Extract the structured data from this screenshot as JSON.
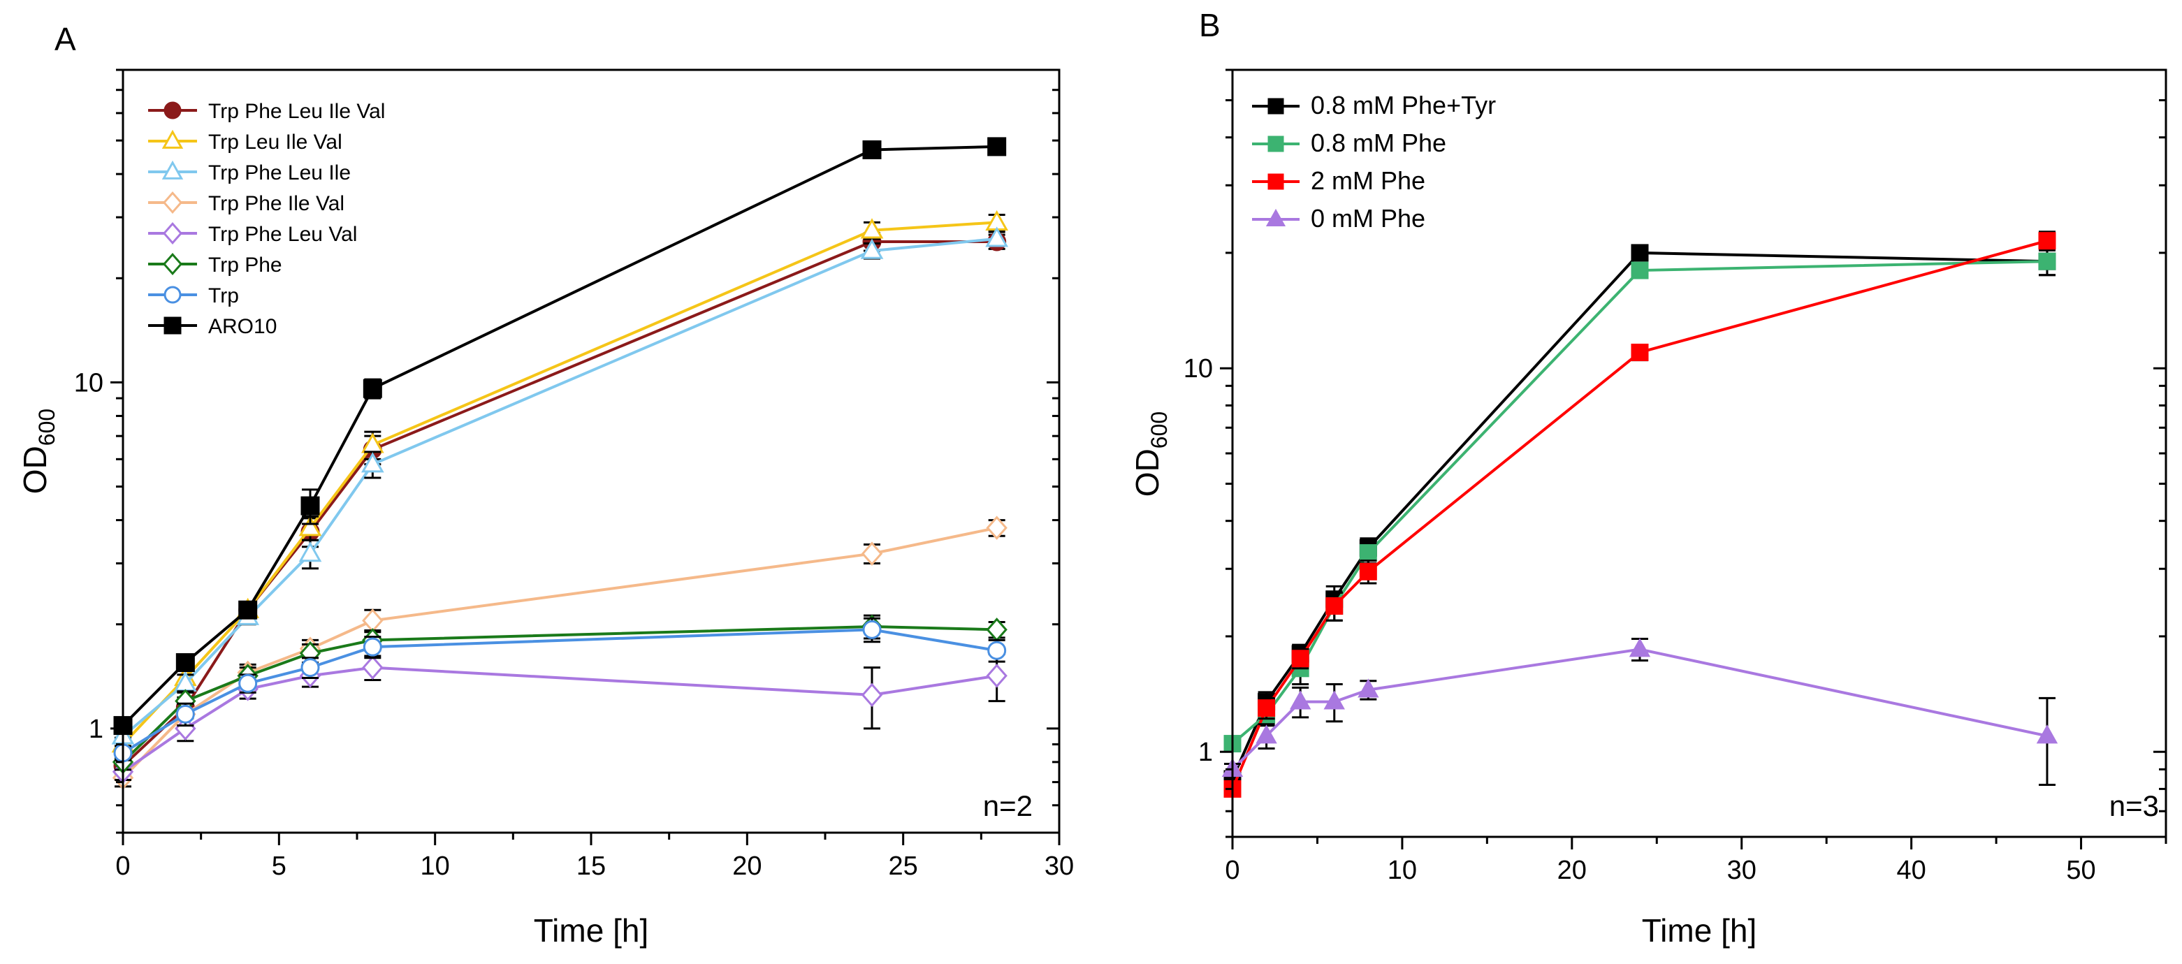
{
  "chart_data": [
    {
      "type": "line",
      "panel_label": "A",
      "xlabel": "Time [h]",
      "ylabel_main": "OD",
      "ylabel_sub": "600",
      "yscale": "log",
      "xlim": [
        0,
        30
      ],
      "ylim": [
        0.5,
        80
      ],
      "xticks": [
        0,
        5,
        10,
        15,
        20,
        25,
        30
      ],
      "xtick_labels": [
        "0",
        "5",
        "10",
        "15",
        "20",
        "25",
        "30"
      ],
      "yticks": [
        1,
        10
      ],
      "ytick_labels": [
        "1",
        "10"
      ],
      "annotation": "n=2",
      "legend_position": "top-left",
      "series": [
        {
          "name": "Trp Phe Leu Ile Val",
          "color": "#8b1a1a",
          "marker": "circle",
          "fill": "filled",
          "x": [
            0,
            2,
            4,
            6,
            8,
            24,
            28
          ],
          "y": [
            0.78,
            1.15,
            2.2,
            3.7,
            6.4,
            25.5,
            25.5
          ],
          "err": [
            0.04,
            0.08,
            0.1,
            0.35,
            0.6,
            1.5,
            1.2
          ]
        },
        {
          "name": "Trp Leu Ile Val",
          "color": "#f5c518",
          "marker": "triangle",
          "fill": "open",
          "x": [
            0,
            2,
            4,
            6,
            8,
            24,
            28
          ],
          "y": [
            0.9,
            1.4,
            2.2,
            3.8,
            6.6,
            27.5,
            29
          ],
          "err": [
            0.04,
            0.08,
            0.1,
            0.3,
            0.6,
            1.5,
            1.5
          ]
        },
        {
          "name": "Trp Phe Leu Ile",
          "color": "#80c8ee",
          "marker": "triangle",
          "fill": "open",
          "x": [
            0,
            2,
            4,
            6,
            8,
            24,
            28
          ],
          "y": [
            0.95,
            1.35,
            2.1,
            3.2,
            5.8,
            24,
            26
          ],
          "err": [
            0.04,
            0.08,
            0.1,
            0.3,
            0.5,
            1.2,
            1.2
          ]
        },
        {
          "name": "Trp Phe Ile Val",
          "color": "#f5b98a",
          "marker": "diamond",
          "fill": "open",
          "x": [
            0,
            2,
            4,
            6,
            8,
            24,
            28
          ],
          "y": [
            0.72,
            1.1,
            1.45,
            1.7,
            2.05,
            3.2,
            3.8
          ],
          "err": [
            0.04,
            0.08,
            0.08,
            0.1,
            0.15,
            0.2,
            0.2
          ]
        },
        {
          "name": "Trp Phe Leu Val",
          "color": "#a978e0",
          "marker": "diamond",
          "fill": "open",
          "x": [
            0,
            2,
            4,
            6,
            8,
            24,
            28
          ],
          "y": [
            0.75,
            1.0,
            1.3,
            1.42,
            1.5,
            1.25,
            1.42
          ],
          "err": [
            0.04,
            0.08,
            0.08,
            0.1,
            0.12,
            0.25,
            0.22
          ]
        },
        {
          "name": "Trp Phe",
          "color": "#1a7a1a",
          "marker": "diamond",
          "fill": "open",
          "x": [
            0,
            2,
            4,
            6,
            8,
            24,
            28
          ],
          "y": [
            0.8,
            1.2,
            1.42,
            1.65,
            1.8,
            1.97,
            1.93
          ],
          "err": [
            0.04,
            0.08,
            0.08,
            0.1,
            0.12,
            0.15,
            0.1
          ]
        },
        {
          "name": "Trp",
          "color": "#4a90e2",
          "marker": "circle",
          "fill": "open",
          "x": [
            0,
            2,
            4,
            6,
            8,
            24,
            28
          ],
          "y": [
            0.85,
            1.1,
            1.35,
            1.5,
            1.72,
            1.93,
            1.68
          ],
          "err": [
            0.04,
            0.08,
            0.08,
            0.1,
            0.12,
            0.15,
            0.12
          ]
        },
        {
          "name": "ARO10",
          "color": "#000000",
          "marker": "square",
          "fill": "filled",
          "x": [
            0,
            2,
            4,
            6,
            8,
            24,
            28
          ],
          "y": [
            1.02,
            1.55,
            2.2,
            4.4,
            9.6,
            47,
            48
          ],
          "err": [
            0.04,
            0.08,
            0.1,
            0.5,
            0.6,
            2,
            2
          ]
        }
      ]
    },
    {
      "type": "line",
      "panel_label": "B",
      "xlabel": "Time [h]",
      "ylabel_main": "OD",
      "ylabel_sub": "600",
      "yscale": "log",
      "xlim": [
        0,
        55
      ],
      "ylim": [
        0.6,
        60
      ],
      "xticks": [
        0,
        10,
        20,
        30,
        40,
        50
      ],
      "xtick_labels": [
        "0",
        "10",
        "20",
        "30",
        "40",
        "50"
      ],
      "yticks": [
        1,
        10
      ],
      "ytick_labels": [
        "1",
        "10"
      ],
      "annotation": "n=3",
      "legend_position": "top-left",
      "series": [
        {
          "name": "0.8 mM Phe+Tyr",
          "color": "#000000",
          "marker": "square",
          "fill": "filled",
          "x": [
            0,
            2,
            4,
            6,
            8,
            24,
            48
          ],
          "y": [
            0.85,
            1.35,
            1.8,
            2.5,
            3.4,
            20,
            19
          ],
          "err": [
            0.03,
            0.08,
            0.1,
            0.2,
            0.2,
            0.8,
            1.5
          ]
        },
        {
          "name": "0.8 mM Phe",
          "color": "#3cb371",
          "marker": "square",
          "fill": "filled",
          "x": [
            0,
            2,
            4,
            6,
            8,
            24,
            48
          ],
          "y": [
            1.05,
            1.25,
            1.65,
            2.4,
            3.3,
            18,
            19
          ],
          "err": [
            0.03,
            0.08,
            0.15,
            0.2,
            0.2,
            0.8,
            1.5
          ]
        },
        {
          "name": "2 mM Phe",
          "color": "#ff0000",
          "marker": "square",
          "fill": "filled",
          "x": [
            0,
            2,
            4,
            6,
            8,
            24,
            48
          ],
          "y": [
            0.8,
            1.3,
            1.75,
            2.4,
            2.95,
            11,
            21.5
          ],
          "err": [
            0.03,
            0.08,
            0.1,
            0.2,
            0.2,
            0.5,
            1.2
          ]
        },
        {
          "name": "0 mM Phe",
          "color": "#a978e0",
          "marker": "triangle",
          "fill": "filled",
          "x": [
            0,
            2,
            4,
            6,
            8,
            24,
            48
          ],
          "y": [
            0.9,
            1.1,
            1.35,
            1.35,
            1.45,
            1.85,
            1.1
          ],
          "err": [
            0.03,
            0.08,
            0.12,
            0.15,
            0.08,
            0.12,
            0.28
          ]
        }
      ]
    }
  ]
}
